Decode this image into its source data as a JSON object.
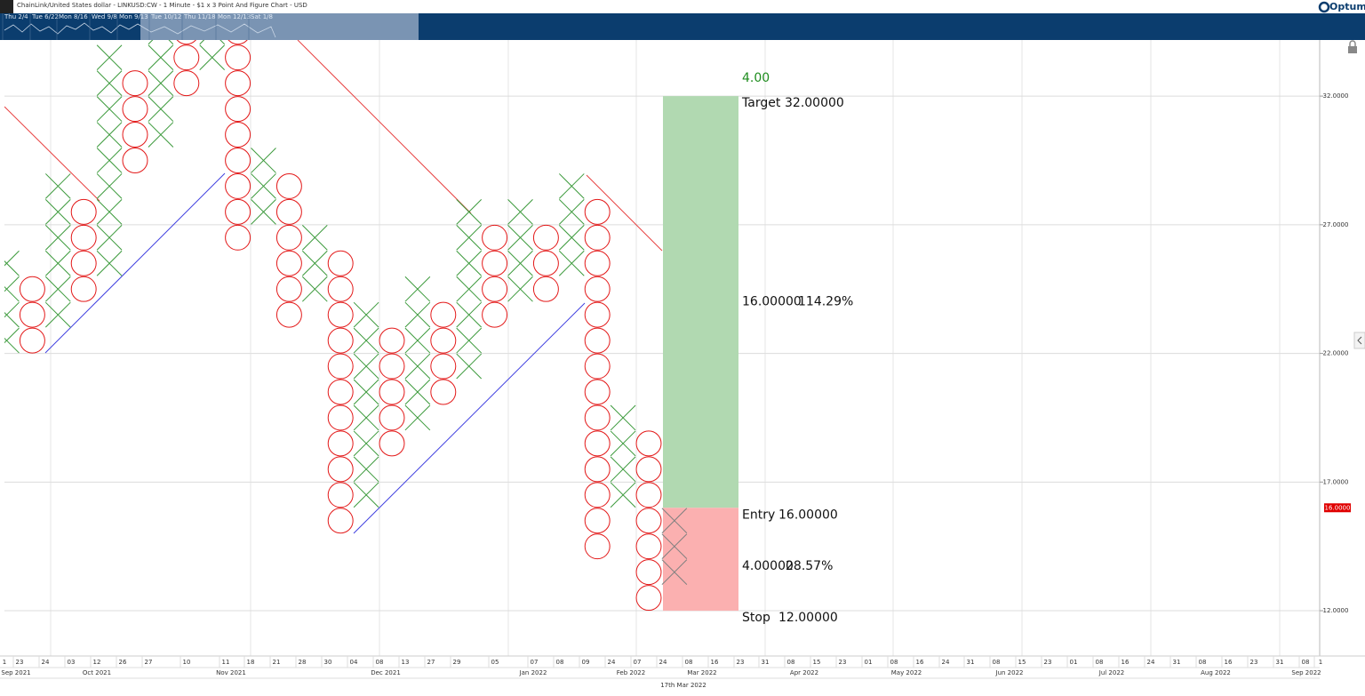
{
  "brand": "Optuma",
  "chart_data": {
    "type": "point_and_figure",
    "title": "ChainLink/United States dollar - LINKUSD:CW - 1 Minute - $1 x 3 Point And Figure Chart - USD",
    "box_size": 1,
    "x_color": "#3c9a3c",
    "o_color": "#e31919",
    "ylim": [
      10.24,
      34.18
    ],
    "yticks": [
      {
        "value": 12,
        "label": "12.0000"
      },
      {
        "value": 17,
        "label": "17.0000"
      },
      {
        "value": 22,
        "label": "22.0000"
      },
      {
        "value": 27,
        "label": "27.0000"
      },
      {
        "value": 32,
        "label": "32.0000"
      }
    ],
    "grid": true,
    "last_price": {
      "value": 16,
      "label": "16.0000",
      "color": "#e00000"
    },
    "columns": [
      {
        "kind": "X",
        "low": 22,
        "high": 26
      },
      {
        "kind": "O",
        "low": 22,
        "high": 25
      },
      {
        "kind": "X",
        "low": 23,
        "high": 29
      },
      {
        "kind": "O",
        "low": 24,
        "high": 28
      },
      {
        "kind": "X",
        "low": 25,
        "high": 34
      },
      {
        "kind": "O",
        "low": 29,
        "high": 33
      },
      {
        "kind": "X",
        "low": 30,
        "high": 35
      },
      {
        "kind": "O",
        "low": 32,
        "high": 36
      },
      {
        "kind": "X",
        "low": 33,
        "high": 37
      },
      {
        "kind": "O",
        "low": 26,
        "high": 36
      },
      {
        "kind": "X",
        "low": 27,
        "high": 30
      },
      {
        "kind": "O",
        "low": 23,
        "high": 29
      },
      {
        "kind": "X",
        "low": 24,
        "high": 27
      },
      {
        "kind": "O",
        "low": 15,
        "high": 26
      },
      {
        "kind": "X",
        "low": 16,
        "high": 24
      },
      {
        "kind": "O",
        "low": 18,
        "high": 23
      },
      {
        "kind": "X",
        "low": 19,
        "high": 25
      },
      {
        "kind": "O",
        "low": 20,
        "high": 24
      },
      {
        "kind": "X",
        "low": 21,
        "high": 28
      },
      {
        "kind": "O",
        "low": 23,
        "high": 27
      },
      {
        "kind": "X",
        "low": 24,
        "high": 28
      },
      {
        "kind": "O",
        "low": 24,
        "high": 27
      },
      {
        "kind": "X",
        "low": 25,
        "high": 29
      },
      {
        "kind": "O",
        "low": 14,
        "high": 28
      },
      {
        "kind": "X",
        "low": 16,
        "high": 20
      },
      {
        "kind": "O",
        "low": 12,
        "high": 19
      },
      {
        "kind": "X",
        "low": 13,
        "high": 16,
        "color": "#808080"
      }
    ],
    "position": {
      "ratio": {
        "value": 4,
        "label": "4.00",
        "color": "#1e8c1e"
      },
      "target": {
        "name": "Target",
        "price": {
          "value": 32,
          "label": "32.00000"
        }
      },
      "reward": {
        "amount": {
          "value": 16,
          "label": "16.00000"
        },
        "percent": {
          "value": 114.29,
          "label": "114.29%"
        },
        "color": "#b1d9b1"
      },
      "entry": {
        "name": "Entry",
        "price": {
          "value": 16,
          "label": "16.00000"
        }
      },
      "risk": {
        "amount": {
          "value": 4,
          "label": "4.00000"
        },
        "percent": {
          "value": 28.57,
          "label": "28.57%"
        },
        "color": "#fbb0b0"
      },
      "stop": {
        "name": "Stop",
        "price": {
          "value": 12,
          "label": "12.00000"
        }
      }
    },
    "day_labels": [
      "1",
      "23",
      "24",
      "03",
      "12",
      "26",
      "27",
      "10",
      "11",
      "18",
      "21",
      "28",
      "30",
      "04",
      "08",
      "13",
      "27",
      "29",
      "05",
      "07",
      "08",
      "09",
      "24",
      "07",
      "24",
      "08",
      "16",
      "23",
      "31",
      "08",
      "15",
      "23",
      "01",
      "08",
      "16",
      "24",
      "31",
      "08",
      "15",
      "23",
      "01",
      "08",
      "16",
      "24",
      "31",
      "08",
      "16",
      "23",
      "31",
      "08",
      "1"
    ],
    "month_labels": [
      "Sep 2021",
      "Oct 2021",
      "Nov 2021",
      "Dec 2021",
      "Jan 2022",
      "Feb 2022",
      "Mar 2022",
      "Apr 2022",
      "May 2022",
      "Jun 2022",
      "Jul 2022",
      "Aug 2022",
      "Sep 2022"
    ],
    "cursor_date": "17th Mar 2022",
    "navigator_labels": [
      "Thu 2/4",
      "Tue 6/22",
      "Mon 8/16",
      "Wed 9/8",
      "Mon 9/13",
      "Tue 10/12",
      "Thu 11/18",
      "Mon 12/13",
      "Sat 1/8"
    ]
  }
}
